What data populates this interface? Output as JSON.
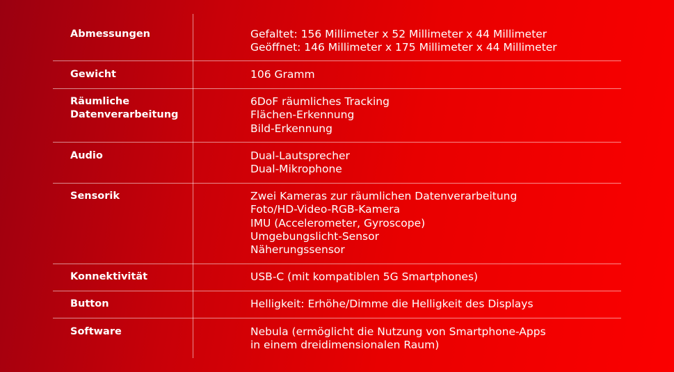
{
  "rows": [
    {
      "label": "Abmessungen",
      "values": [
        "Gefaltet: 156 Millimeter x 52 Millimeter x 44 Millimeter",
        "Geöffnet: 146 Millimeter x 175 Millimeter x 44 Millimeter"
      ]
    },
    {
      "label": "Gewicht",
      "values": [
        "106 Gramm"
      ]
    },
    {
      "label": "Räumliche\nDatenverarbeitung",
      "values": [
        "6DoF räumliches Tracking",
        "Flächen-Erkennung",
        "Bild-Erkennung"
      ]
    },
    {
      "label": "Audio",
      "values": [
        "Dual-Lautsprecher",
        "Dual-Mikrophone"
      ]
    },
    {
      "label": "Sensorik",
      "values": [
        "Zwei Kameras zur räumlichen Datenverarbeitung",
        "Foto/HD-Video-RGB-Kamera",
        "IMU (Accelerometer, Gyroscope)",
        "Umgebungslicht-Sensor",
        "Näherungssensor"
      ]
    },
    {
      "label": "Konnektivität",
      "values": [
        "USB-C (mit kompatiblen 5G Smartphones)"
      ]
    },
    {
      "label": "Button",
      "values": [
        "Helligkeit: Erhöhe/Dimme die Helligkeit des Displays"
      ]
    },
    {
      "label": "Software",
      "values": [
        "Nebula (ermöglicht die Nutzung von Smartphone-Apps",
        "in einem dreidimensionalen Raum)"
      ]
    }
  ]
}
